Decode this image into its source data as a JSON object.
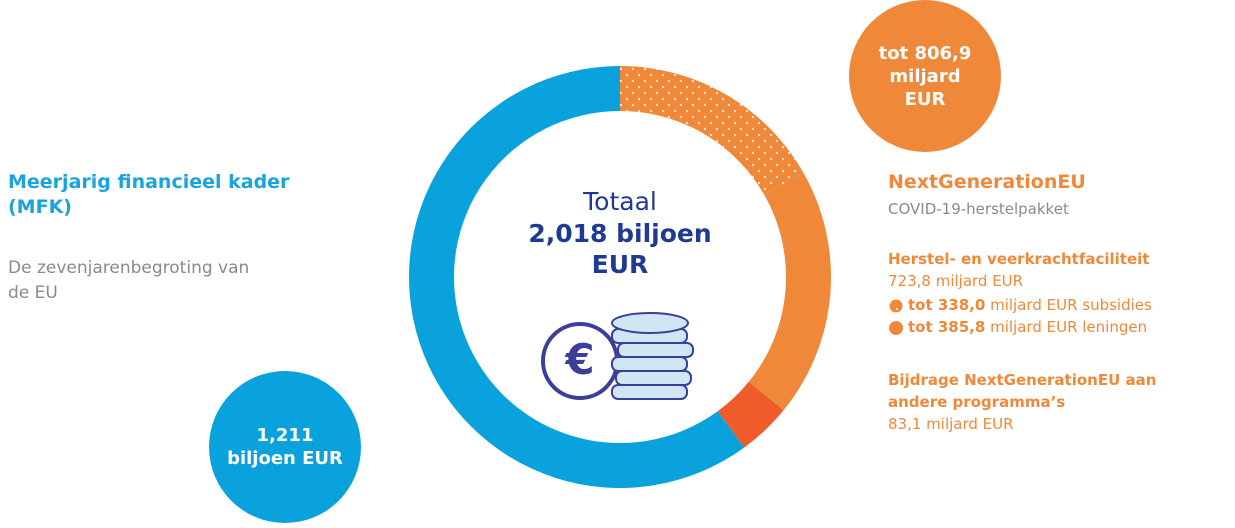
{
  "chart_data": {
    "type": "donut",
    "values": [
      338.0,
      385.8,
      83.1,
      1211
    ],
    "value_labels": [
      "tot 338,0",
      "tot 385,8",
      "83,1 miljard EUR",
      "1,211 biljoen EUR"
    ],
    "colors": [
      "#f0883a",
      "#f0883a",
      "#ef5b2b",
      "#0aa2dd"
    ],
    "dotted": [
      true,
      false,
      false,
      false
    ],
    "center": {
      "title": "Totaal",
      "total": "2,018 biljoen EUR"
    },
    "mfk": {
      "title": "Meerjarig financieel kader (MFK)",
      "subtitle": "De zevenjarenbegroting van de EU"
    },
    "ngeu": {
      "title": "NextGenerationEU",
      "subtitle": "COVID-19-herstelpakket",
      "badge": "tot 806,9 miljard EUR"
    },
    "rrf": {
      "title": "Herstel- en veerkrachtfaciliteit",
      "amount": "723,8 miljard EUR",
      "suffixes": [
        "miljard EUR subsidies",
        "miljard EUR leningen"
      ]
    },
    "other": {
      "title": "Bijdrage NextGenerationEU aan andere programma’s"
    }
  }
}
